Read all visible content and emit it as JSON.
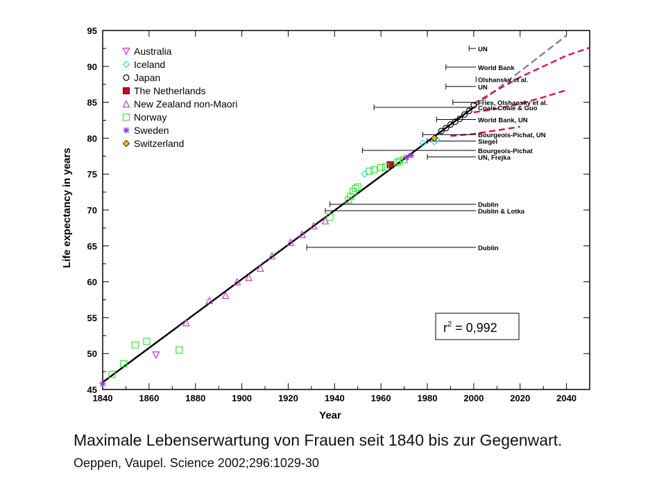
{
  "chart_data": {
    "type": "scatter",
    "xlabel": "Year",
    "ylabel": "Life expectancy in years",
    "xlim": [
      1840,
      2050
    ],
    "ylim": [
      45,
      95
    ],
    "xticks": [
      1840,
      1860,
      1880,
      1900,
      1920,
      1940,
      1960,
      1980,
      2000,
      2020,
      2040
    ],
    "yticks": [
      45,
      50,
      55,
      60,
      65,
      70,
      75,
      80,
      85,
      90,
      95
    ],
    "grid": false,
    "legend_position": "top-left",
    "annotation": {
      "prefix": "r",
      "sup": "2",
      "suffix": " = 0,992"
    },
    "series": [
      {
        "name": "Australia",
        "marker": "triangle-down",
        "color": "#e020e0",
        "points": [
          [
            1863,
            49.8
          ]
        ]
      },
      {
        "name": "Iceland",
        "marker": "diamond-open",
        "color": "#33d7ee",
        "points": [
          [
            1953,
            75.0
          ],
          [
            1978,
            79.3
          ],
          [
            1983,
            79.5
          ],
          [
            1984,
            79.8
          ]
        ]
      },
      {
        "name": "Japan",
        "marker": "circle-open",
        "color": "#000000",
        "points": [
          [
            1986,
            81.0
          ],
          [
            1988,
            81.4
          ],
          [
            1990,
            81.9
          ],
          [
            1992,
            82.3
          ],
          [
            1994,
            82.7
          ],
          [
            1996,
            83.3
          ],
          [
            1998,
            83.8
          ],
          [
            2000,
            84.6
          ]
        ]
      },
      {
        "name": "The Netherlands",
        "marker": "square-filled",
        "color": "#cc0022",
        "points": [
          [
            1964,
            76.3
          ]
        ]
      },
      {
        "name": "New Zealand non-Maori",
        "marker": "triangle-up",
        "color": "#c040c0",
        "points": [
          [
            1876,
            54.3
          ],
          [
            1886,
            57.4
          ],
          [
            1893,
            58.1
          ],
          [
            1898,
            60.0
          ],
          [
            1903,
            60.6
          ],
          [
            1908,
            61.9
          ],
          [
            1913,
            63.6
          ],
          [
            1921,
            65.5
          ],
          [
            1926,
            66.6
          ],
          [
            1931,
            67.8
          ],
          [
            1936,
            68.5
          ]
        ]
      },
      {
        "name": "Norway",
        "marker": "square-open",
        "color": "#44dd44",
        "points": [
          [
            1844,
            47.1
          ],
          [
            1849,
            48.6
          ],
          [
            1854,
            51.2
          ],
          [
            1859,
            51.7
          ],
          [
            1873,
            50.5
          ],
          [
            1938,
            69.0
          ],
          [
            1946,
            71.4
          ],
          [
            1947,
            71.9
          ],
          [
            1948,
            72.6
          ],
          [
            1949,
            73.0
          ],
          [
            1950,
            73.2
          ],
          [
            1955,
            75.4
          ],
          [
            1957,
            75.6
          ],
          [
            1960,
            75.9
          ],
          [
            1962,
            76.0
          ],
          [
            1967,
            76.6
          ],
          [
            1968,
            76.8
          ],
          [
            1970,
            77.0
          ]
        ]
      },
      {
        "name": "Sweden",
        "marker": "asterisk",
        "color": "#9933ee",
        "points": [
          [
            1840,
            45.8
          ],
          [
            1971,
            77.3
          ],
          [
            1973,
            77.6
          ]
        ]
      },
      {
        "name": "Switzerland",
        "marker": "diamond-filled",
        "color": "#ffbb00",
        "points": [
          [
            1983,
            80.0
          ]
        ]
      }
    ],
    "regression_line": {
      "x": [
        1840,
        2000
      ],
      "y": [
        46.0,
        84.3
      ],
      "color": "#000000"
    },
    "extrapolation": {
      "x": [
        2000,
        2040
      ],
      "y": [
        84.3,
        94.3
      ],
      "color": "#888888"
    },
    "forecast_curves": [
      {
        "x": [
          2000,
          2010,
          2020,
          2030,
          2040,
          2050
        ],
        "y": [
          84.8,
          86.7,
          88.5,
          90.0,
          91.5,
          92.6
        ]
      },
      {
        "x": [
          2000,
          2010,
          2020,
          2030,
          2040
        ],
        "y": [
          83.6,
          84.1,
          84.8,
          85.7,
          86.7
        ]
      },
      {
        "x": [
          1990,
          2000,
          2010,
          2020
        ],
        "y": [
          80.3,
          80.6,
          81.1,
          81.6
        ]
      }
    ],
    "forecast_color": "#dd1166",
    "predictions": [
      {
        "label": "UN",
        "year": 1998,
        "value": 92.5
      },
      {
        "label": "World Bank",
        "year": 1988,
        "value": 89.9
      },
      {
        "label": "Olshansky et al.",
        "year": 2001,
        "value": 88.2
      },
      {
        "label": "UN",
        "year": 1988,
        "value": 87.2
      },
      {
        "label": "Fries, Olshansky et al.",
        "year": 1991,
        "value": 85.0
      },
      {
        "label": "Coale  Coale & Guo",
        "year": 1957,
        "value": 84.3
      },
      {
        "label": "World Bank, UN",
        "year": 1984,
        "value": 82.6
      },
      {
        "label": "Bourgeois-Pichat, UN",
        "year": 1978,
        "value": 80.5
      },
      {
        "label": "Siegel",
        "year": 1980,
        "value": 79.6
      },
      {
        "label": "Bourgeois-Pichat",
        "year": 1952,
        "value": 78.3
      },
      {
        "label": "UN, Frejka",
        "year": 1980,
        "value": 77.4
      },
      {
        "label": "Dublin",
        "year": 1938,
        "value": 70.8
      },
      {
        "label": "Dublin & Lotka",
        "year": 1936,
        "value": 69.9
      },
      {
        "label": "Dublin",
        "year": 1928,
        "value": 64.8
      }
    ]
  },
  "caption": {
    "title": "Maximale Lebenserwartung von Frauen seit 1840 bis zur Gegenwart.",
    "source": "Oeppen, Vaupel. Science 2002;296:1029-30"
  }
}
